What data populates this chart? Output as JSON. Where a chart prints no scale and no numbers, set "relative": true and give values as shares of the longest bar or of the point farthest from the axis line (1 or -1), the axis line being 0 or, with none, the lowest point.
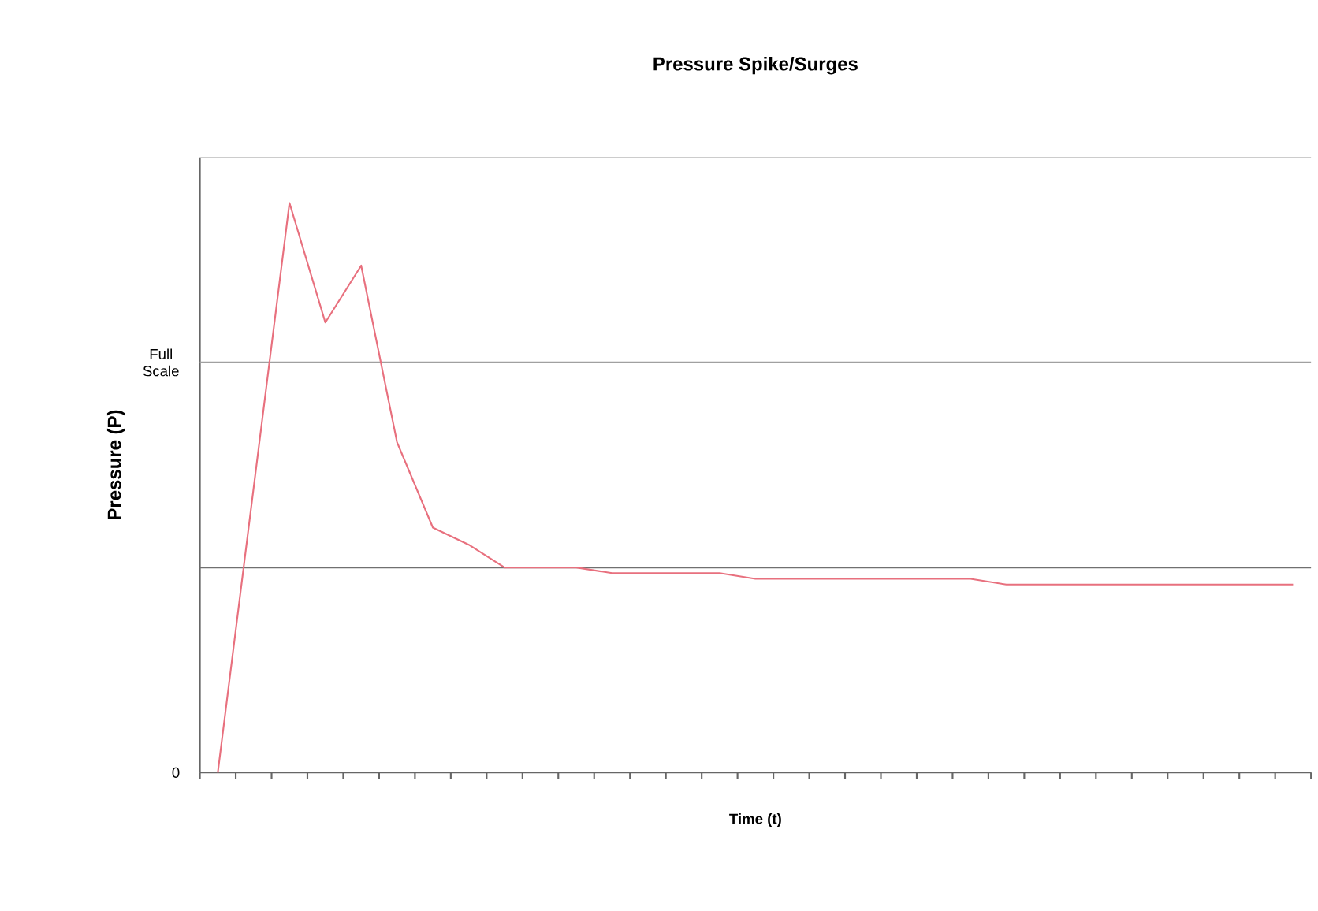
{
  "chart_data": {
    "type": "line",
    "title": "Pressure Spike/Surges",
    "xlabel": "Time (t)",
    "ylabel": "Pressure (P)",
    "relative": true,
    "categories": [
      null,
      null,
      null,
      null,
      null,
      null,
      null,
      null,
      null,
      null,
      null,
      null,
      null,
      null,
      null,
      null,
      null,
      null,
      null,
      null,
      null,
      null,
      null,
      null,
      null,
      null,
      null,
      null,
      null,
      null,
      null
    ],
    "values": [
      0,
      0.5,
      1,
      0.79,
      0.89,
      0.58,
      0.43,
      0.4,
      0.36,
      0.36,
      0.36,
      0.35,
      0.35,
      0.35,
      0.35,
      0.34,
      0.34,
      0.34,
      0.34,
      0.34,
      0.34,
      0.34,
      0.33,
      0.33,
      0.33,
      0.33,
      0.33,
      0.33,
      0.33,
      0.33,
      0.33
    ],
    "color": "#e8707e",
    "annotations": [
      "0"
    ],
    "ref_lines": [
      {
        "axis": "y",
        "value": 0.72,
        "label": "Full Scale",
        "color": "#a0a0a0"
      },
      {
        "axis": "y",
        "value": 0.36,
        "color": "#707070"
      }
    ],
    "grid": false,
    "legend": false,
    "marker": "none",
    "line_style": "solid"
  }
}
